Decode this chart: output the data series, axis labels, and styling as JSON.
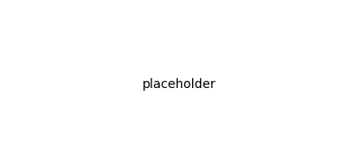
{
  "bg_color": "#ffffff",
  "line_color": "#1a1a1a",
  "line_width": 1.5,
  "font_size": 7.5,
  "fig_width": 3.87,
  "fig_height": 1.87
}
